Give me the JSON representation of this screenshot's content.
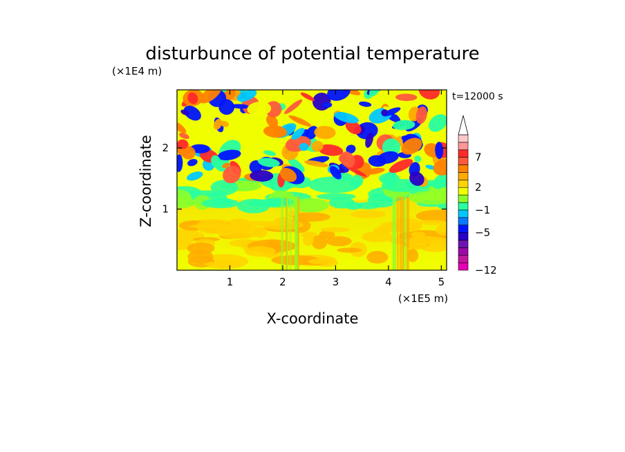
{
  "chart_data": {
    "type": "heatmap",
    "title": "disturbunce of potential temperature",
    "xlabel": "X-coordinate",
    "ylabel": "Z-coordinate",
    "x_unit": "(×1E5 m)",
    "y_unit": "(×1E4 m)",
    "time_label": "t=12000 s",
    "xlim": [
      0,
      5.1
    ],
    "ylim": [
      0,
      2.95
    ],
    "x_ticks": [
      "1",
      "2",
      "3",
      "4",
      "5"
    ],
    "x_tick_values": [
      1,
      2,
      3,
      4,
      5
    ],
    "y_ticks": [
      "1",
      "2"
    ],
    "y_tick_values": [
      1,
      2
    ],
    "colorbar": {
      "levels": [
        -12,
        -10.5,
        -9,
        -7.5,
        -6,
        -5,
        -4,
        -2.5,
        -1,
        0,
        1,
        2,
        3,
        4,
        5.5,
        7,
        8.5,
        10
      ],
      "labeled_ticks": [
        "7",
        "2",
        "−1",
        "−5",
        "−12"
      ],
      "labeled_values": [
        7,
        2,
        -1,
        -5,
        -12
      ],
      "colors": [
        "#e600b4",
        "#c3189e",
        "#9b0aa8",
        "#6e14b4",
        "#2800c8",
        "#0014ff",
        "#0a78ff",
        "#00c8ff",
        "#28ffa0",
        "#8cff2a",
        "#f0ff00",
        "#ffd200",
        "#ffaa00",
        "#ff8200",
        "#ff5a3c",
        "#ff2a2a",
        "#ff9696",
        "#ffc8c8"
      ],
      "extend": "max"
    },
    "grid": false
  }
}
